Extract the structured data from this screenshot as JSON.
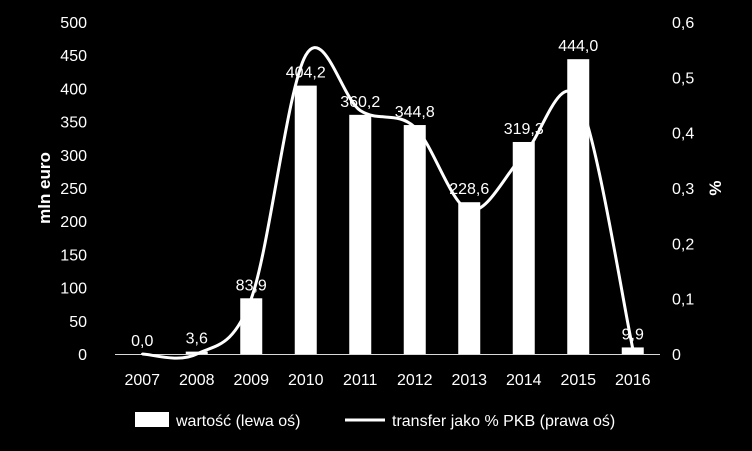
{
  "chart_data": {
    "type": "bar",
    "categories": [
      "2007",
      "2008",
      "2009",
      "2010",
      "2011",
      "2012",
      "2013",
      "2014",
      "2015",
      "2016"
    ],
    "series": [
      {
        "name": "wartość (lewa oś)",
        "type": "bar",
        "axis": "left",
        "values": [
          0.0,
          3.6,
          83.9,
          404.2,
          360.2,
          344.8,
          228.6,
          319.3,
          444.0,
          9.9
        ],
        "labels": [
          "0,0",
          "3,6",
          "83,9",
          "404,2",
          "360,2",
          "344,8",
          "228,6",
          "319,3",
          "444,0",
          "9,9"
        ],
        "color": "#ffffff"
      },
      {
        "name": "transfer jako % PKB (prawa oś)",
        "type": "line",
        "axis": "right",
        "values": [
          0.0,
          0.0,
          0.1,
          0.54,
          0.44,
          0.41,
          0.26,
          0.36,
          0.46,
          0.01
        ],
        "color": "#ffffff"
      }
    ],
    "ylabel_left": "mln euro",
    "ylabel_right": "%",
    "ylim_left": [
      0,
      500
    ],
    "ylim_right": [
      0,
      0.6
    ],
    "yticks_left": [
      "0",
      "50",
      "100",
      "150",
      "200",
      "250",
      "300",
      "350",
      "400",
      "450",
      "500"
    ],
    "yticks_right": [
      "0",
      "0,1",
      "0,2",
      "0,3",
      "0,4",
      "0,5",
      "0,6"
    ],
    "grid": false,
    "legend_position": "bottom",
    "background": "#000000",
    "foreground": "#ffffff"
  }
}
